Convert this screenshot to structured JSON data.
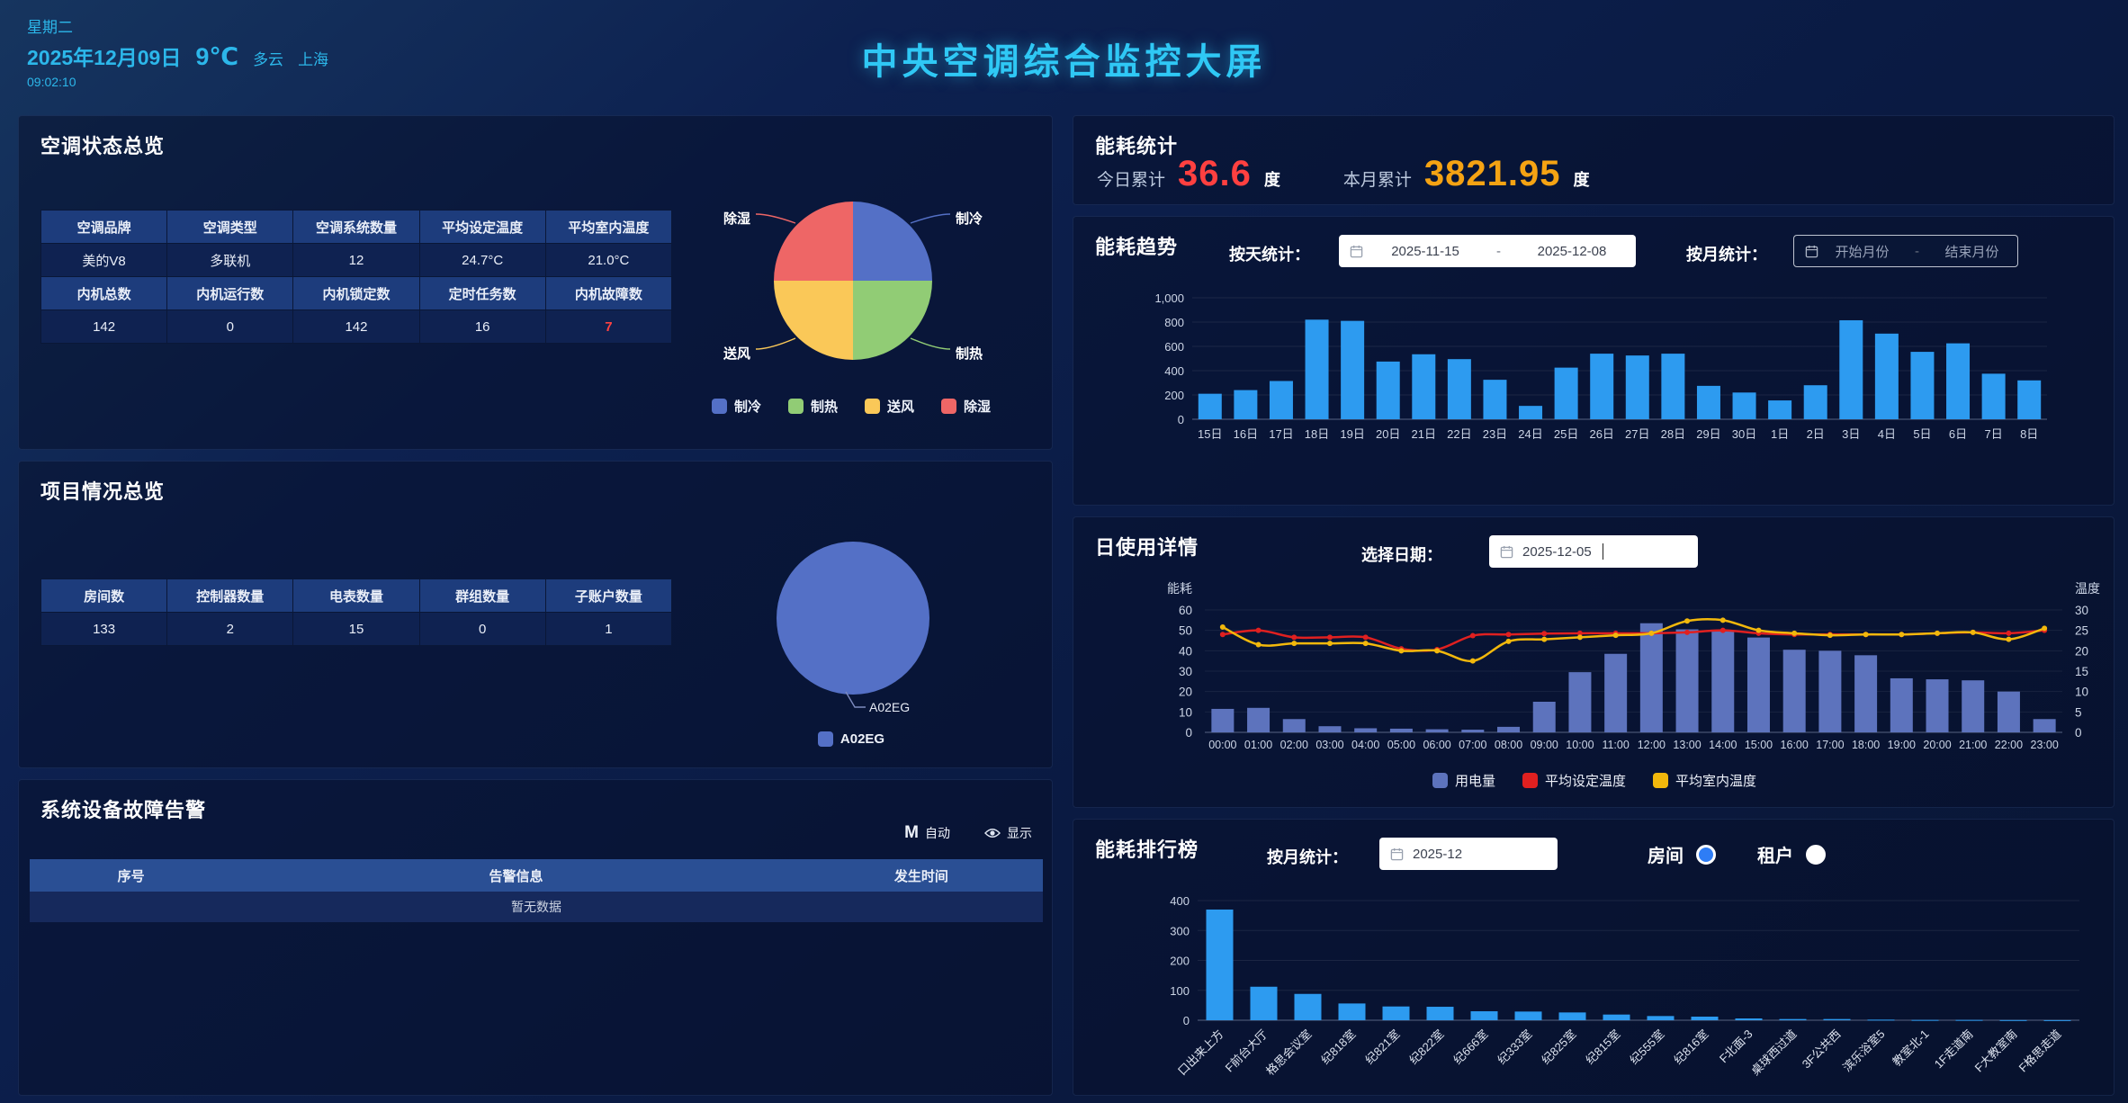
{
  "header": {
    "weekday": "星期二",
    "date": "2025年12月09日",
    "temperature": "9℃",
    "weather": "多云",
    "city": "上海",
    "time": "09:02:10",
    "title": "中央空调综合监控大屏"
  },
  "ac_status": {
    "title": "空调状态总览",
    "table": {
      "header1": [
        "空调品牌",
        "空调类型",
        "空调系统数量",
        "平均设定温度",
        "平均室内温度"
      ],
      "row1": [
        "美的V8",
        "多联机",
        "12",
        "24.7°C",
        "21.0°C"
      ],
      "header2": [
        "内机总数",
        "内机运行数",
        "内机锁定数",
        "定时任务数",
        "内机故障数"
      ],
      "row2": [
        "142",
        "0",
        "142",
        "16",
        "7"
      ]
    }
  },
  "project": {
    "title": "项目情况总览",
    "table": {
      "header": [
        "房间数",
        "控制器数量",
        "电表数量",
        "群组数量",
        "子账户数量"
      ],
      "row": [
        "133",
        "2",
        "15",
        "0",
        "1"
      ]
    }
  },
  "alarms": {
    "title": "系统设备故障告警",
    "auto_icon": "M",
    "auto_label": "自动",
    "show_label": "显示",
    "table_header": [
      "序号",
      "告警信息",
      "发生时间"
    ],
    "empty_text": "暂无数据"
  },
  "energy_stats": {
    "title": "能耗统计",
    "today_label": "今日累计",
    "today_value": "36.6",
    "today_unit": "度",
    "month_label": "本月累计",
    "month_value": "3821.95",
    "month_unit": "度"
  },
  "energy_trend": {
    "title": "能耗趋势",
    "day_label": "按天统计：",
    "day_start": "2025-11-15",
    "day_sep": "-",
    "day_end": "2025-12-08",
    "month_label": "按月统计：",
    "month_start_placeholder": "开始月份",
    "month_sep": "-",
    "month_end_placeholder": "结束月份"
  },
  "day_usage": {
    "title": "日使用详情",
    "date_label": "选择日期：",
    "date_value": "2025-12-05"
  },
  "ranking": {
    "title": "能耗排行榜",
    "month_label": "按月统计：",
    "month_value": "2025-12",
    "radio_room": "房间",
    "radio_tenant": "租户",
    "room_selected": true
  },
  "colors": {
    "accent_cyan": "#2fc8f5",
    "bar_blue": "#2d9bf0",
    "bar_purple": "#5d73bd",
    "line_red": "#e02020",
    "line_yellow": "#f2b80c",
    "value_red": "#ff4040",
    "value_orange": "#f5a313",
    "pie_blue": "#5470c6",
    "pie_green": "#91cc75",
    "pie_yellow": "#fac858",
    "pie_red": "#ee6666"
  },
  "chart_data": [
    {
      "id": "ac_mode_pie",
      "type": "pie",
      "labels": [
        "制冷",
        "制热",
        "送风",
        "除湿"
      ],
      "values": [
        1,
        1,
        1,
        1
      ],
      "colors": [
        "#5470c6",
        "#91cc75",
        "#fac858",
        "#ee6666"
      ],
      "legend_position": "bottom"
    },
    {
      "id": "project_pie",
      "type": "pie",
      "labels": [
        "A02EG"
      ],
      "values": [
        1
      ],
      "colors": [
        "#5470c6"
      ],
      "legend_position": "bottom"
    },
    {
      "id": "energy_trend_bar",
      "type": "bar",
      "categories": [
        "15日",
        "16日",
        "17日",
        "18日",
        "19日",
        "20日",
        "21日",
        "22日",
        "23日",
        "24日",
        "25日",
        "26日",
        "27日",
        "28日",
        "29日",
        "30日",
        "1日",
        "2日",
        "3日",
        "4日",
        "5日",
        "6日",
        "7日",
        "8日"
      ],
      "values": [
        210,
        240,
        315,
        820,
        810,
        475,
        535,
        495,
        325,
        110,
        425,
        540,
        525,
        540,
        275,
        220,
        155,
        280,
        815,
        705,
        555,
        625,
        375,
        320
      ],
      "ylim": [
        0,
        1000
      ],
      "yticks": [
        0,
        200,
        400,
        600,
        800,
        1000
      ],
      "grid": true
    },
    {
      "id": "day_usage_combo",
      "type": "bar",
      "categories": [
        "00:00",
        "01:00",
        "02:00",
        "03:00",
        "04:00",
        "05:00",
        "06:00",
        "07:00",
        "08:00",
        "09:00",
        "10:00",
        "11:00",
        "12:00",
        "13:00",
        "14:00",
        "15:00",
        "16:00",
        "17:00",
        "18:00",
        "19:00",
        "20:00",
        "21:00",
        "22:00",
        "23:00"
      ],
      "series": [
        {
          "name": "用电量",
          "type": "bar",
          "axis": "left",
          "values": [
            11.5,
            12,
            6.5,
            3,
            2,
            1.8,
            1.5,
            1.3,
            2.7,
            15,
            29.5,
            38.5,
            53.5,
            50.5,
            49.5,
            46.5,
            40.5,
            40,
            37.8,
            26.5,
            26,
            25.5,
            20,
            6.5
          ]
        },
        {
          "name": "平均设定温度",
          "type": "line",
          "axis": "right",
          "values": [
            24,
            25,
            23.3,
            23.3,
            23.3,
            20.5,
            20.3,
            23.7,
            24,
            24.2,
            24.3,
            24.3,
            24.3,
            24.5,
            25,
            24.3,
            24,
            24,
            24,
            24,
            24.3,
            24.5,
            24.3,
            25
          ]
        },
        {
          "name": "平均室内温度",
          "type": "line",
          "axis": "right",
          "values": [
            25.8,
            21.5,
            21.8,
            21.8,
            21.8,
            20,
            20,
            17.5,
            22.3,
            22.8,
            23.3,
            23.8,
            24.3,
            27.3,
            27.5,
            25,
            24.3,
            23.8,
            24,
            24,
            24.3,
            24.5,
            22.8,
            25.5
          ]
        }
      ],
      "left_axis": {
        "label": "能耗",
        "lim": [
          0,
          60
        ],
        "ticks": [
          0,
          10,
          20,
          30,
          40,
          50,
          60
        ]
      },
      "right_axis": {
        "label": "温度",
        "lim": [
          0,
          30
        ],
        "ticks": [
          0,
          5,
          10,
          15,
          20,
          25,
          30
        ]
      },
      "legend_position": "bottom"
    },
    {
      "id": "ranking_bar",
      "type": "bar",
      "categories": [
        "口出来上方",
        "F前台大厅",
        "格思会议室",
        "纪818室",
        "纪821室",
        "纪822室",
        "纪666室",
        "纪333室",
        "纪825室",
        "纪815室",
        "纪555室",
        "纪816室",
        "F北面-3",
        "桌球西过道",
        "3F公共西",
        "滨乐浴室5",
        "教室北-1",
        "1F走道南",
        "F大教室南",
        "F格思走道"
      ],
      "values": [
        370,
        112,
        88,
        56,
        46,
        45,
        30,
        29,
        26,
        19,
        14,
        12,
        6,
        4,
        4,
        2,
        1,
        1,
        0.5,
        0.3
      ],
      "ylim": [
        0,
        400
      ],
      "yticks": [
        0,
        100,
        200,
        300,
        400
      ],
      "grid": true
    }
  ]
}
